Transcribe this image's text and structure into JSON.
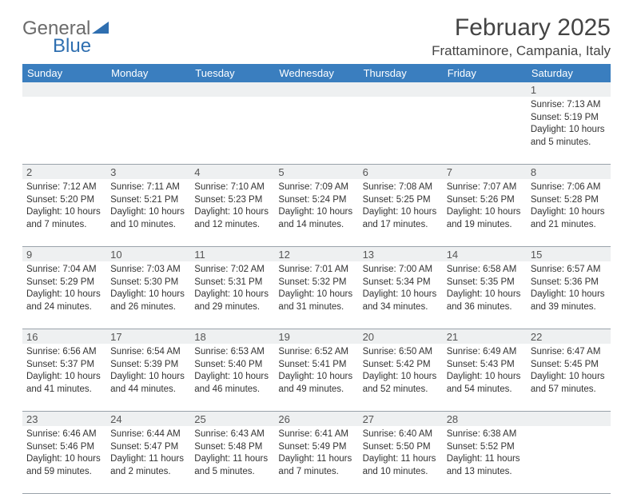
{
  "brand": {
    "part1": "General",
    "part2": "Blue"
  },
  "title": "February 2025",
  "location": "Frattaminore, Campania, Italy",
  "colors": {
    "header_bar": "#3a7ebf",
    "daynum_bg": "#eef0f1",
    "rule": "#9aa3aa",
    "logo_gray": "#6b6b6b",
    "logo_blue": "#2f6fb0",
    "text": "#333333",
    "background": "#ffffff"
  },
  "day_names": [
    "Sunday",
    "Monday",
    "Tuesday",
    "Wednesday",
    "Thursday",
    "Friday",
    "Saturday"
  ],
  "weeks": [
    {
      "nums": [
        "",
        "",
        "",
        "",
        "",
        "",
        "1"
      ],
      "cells": [
        [],
        [],
        [],
        [],
        [],
        [],
        [
          "Sunrise: 7:13 AM",
          "Sunset: 5:19 PM",
          "Daylight: 10 hours and 5 minutes."
        ]
      ]
    },
    {
      "nums": [
        "2",
        "3",
        "4",
        "5",
        "6",
        "7",
        "8"
      ],
      "cells": [
        [
          "Sunrise: 7:12 AM",
          "Sunset: 5:20 PM",
          "Daylight: 10 hours and 7 minutes."
        ],
        [
          "Sunrise: 7:11 AM",
          "Sunset: 5:21 PM",
          "Daylight: 10 hours and 10 minutes."
        ],
        [
          "Sunrise: 7:10 AM",
          "Sunset: 5:23 PM",
          "Daylight: 10 hours and 12 minutes."
        ],
        [
          "Sunrise: 7:09 AM",
          "Sunset: 5:24 PM",
          "Daylight: 10 hours and 14 minutes."
        ],
        [
          "Sunrise: 7:08 AM",
          "Sunset: 5:25 PM",
          "Daylight: 10 hours and 17 minutes."
        ],
        [
          "Sunrise: 7:07 AM",
          "Sunset: 5:26 PM",
          "Daylight: 10 hours and 19 minutes."
        ],
        [
          "Sunrise: 7:06 AM",
          "Sunset: 5:28 PM",
          "Daylight: 10 hours and 21 minutes."
        ]
      ]
    },
    {
      "nums": [
        "9",
        "10",
        "11",
        "12",
        "13",
        "14",
        "15"
      ],
      "cells": [
        [
          "Sunrise: 7:04 AM",
          "Sunset: 5:29 PM",
          "Daylight: 10 hours and 24 minutes."
        ],
        [
          "Sunrise: 7:03 AM",
          "Sunset: 5:30 PM",
          "Daylight: 10 hours and 26 minutes."
        ],
        [
          "Sunrise: 7:02 AM",
          "Sunset: 5:31 PM",
          "Daylight: 10 hours and 29 minutes."
        ],
        [
          "Sunrise: 7:01 AM",
          "Sunset: 5:32 PM",
          "Daylight: 10 hours and 31 minutes."
        ],
        [
          "Sunrise: 7:00 AM",
          "Sunset: 5:34 PM",
          "Daylight: 10 hours and 34 minutes."
        ],
        [
          "Sunrise: 6:58 AM",
          "Sunset: 5:35 PM",
          "Daylight: 10 hours and 36 minutes."
        ],
        [
          "Sunrise: 6:57 AM",
          "Sunset: 5:36 PM",
          "Daylight: 10 hours and 39 minutes."
        ]
      ]
    },
    {
      "nums": [
        "16",
        "17",
        "18",
        "19",
        "20",
        "21",
        "22"
      ],
      "cells": [
        [
          "Sunrise: 6:56 AM",
          "Sunset: 5:37 PM",
          "Daylight: 10 hours and 41 minutes."
        ],
        [
          "Sunrise: 6:54 AM",
          "Sunset: 5:39 PM",
          "Daylight: 10 hours and 44 minutes."
        ],
        [
          "Sunrise: 6:53 AM",
          "Sunset: 5:40 PM",
          "Daylight: 10 hours and 46 minutes."
        ],
        [
          "Sunrise: 6:52 AM",
          "Sunset: 5:41 PM",
          "Daylight: 10 hours and 49 minutes."
        ],
        [
          "Sunrise: 6:50 AM",
          "Sunset: 5:42 PM",
          "Daylight: 10 hours and 52 minutes."
        ],
        [
          "Sunrise: 6:49 AM",
          "Sunset: 5:43 PM",
          "Daylight: 10 hours and 54 minutes."
        ],
        [
          "Sunrise: 6:47 AM",
          "Sunset: 5:45 PM",
          "Daylight: 10 hours and 57 minutes."
        ]
      ]
    },
    {
      "nums": [
        "23",
        "24",
        "25",
        "26",
        "27",
        "28",
        ""
      ],
      "cells": [
        [
          "Sunrise: 6:46 AM",
          "Sunset: 5:46 PM",
          "Daylight: 10 hours and 59 minutes."
        ],
        [
          "Sunrise: 6:44 AM",
          "Sunset: 5:47 PM",
          "Daylight: 11 hours and 2 minutes."
        ],
        [
          "Sunrise: 6:43 AM",
          "Sunset: 5:48 PM",
          "Daylight: 11 hours and 5 minutes."
        ],
        [
          "Sunrise: 6:41 AM",
          "Sunset: 5:49 PM",
          "Daylight: 11 hours and 7 minutes."
        ],
        [
          "Sunrise: 6:40 AM",
          "Sunset: 5:50 PM",
          "Daylight: 11 hours and 10 minutes."
        ],
        [
          "Sunrise: 6:38 AM",
          "Sunset: 5:52 PM",
          "Daylight: 11 hours and 13 minutes."
        ],
        []
      ]
    }
  ]
}
